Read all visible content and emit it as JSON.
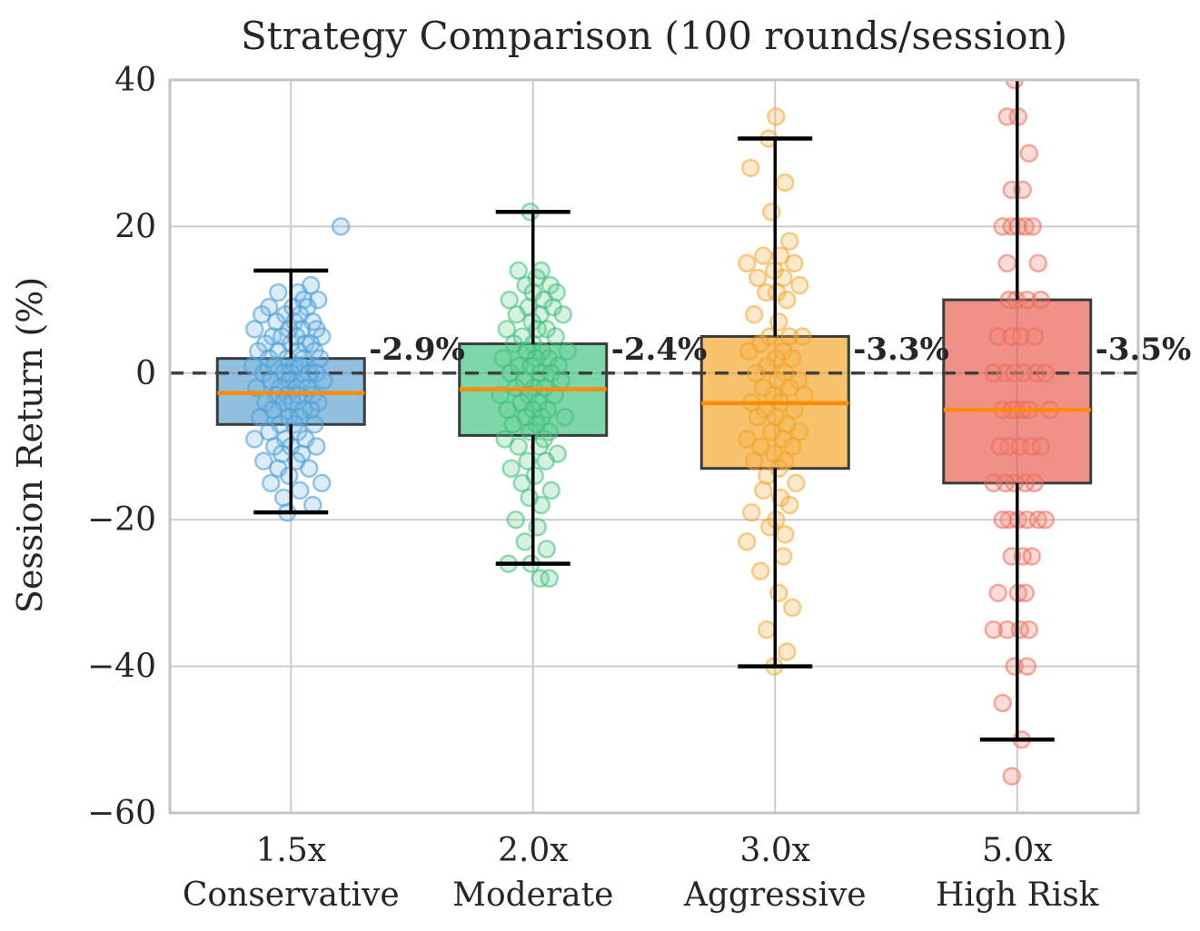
{
  "chart_data": {
    "type": "boxplot",
    "title": "Strategy Comparison (100 rounds/session)",
    "ylabel": "Session Return (%)",
    "ylim": [
      -60,
      40
    ],
    "yticks": [
      40,
      20,
      0,
      -20,
      -40,
      -60
    ],
    "ytick_labels": [
      "40",
      "20",
      "0",
      "−20",
      "−40",
      "−60"
    ],
    "zero_reference_line": 0,
    "grid": true,
    "legend_position": "none",
    "style": {
      "box_edge": "#3b3b3b",
      "median_color": "#ff8a05",
      "whisker_color": "#000000",
      "grid_color": "#cccccc",
      "spine_color": "#c4c4c4",
      "dashed_line_color": "#3f3f3f",
      "text_color": "#262626",
      "background": "#ffffff"
    },
    "groups": [
      {
        "tick_line1": "1.5x",
        "tick_line2": "Conservative",
        "annotation": "-2.9%",
        "annotation_color": "#3d8fd1",
        "box_fill": "rgba(52,138,199,0.55)",
        "point_stroke": "rgba(80,158,215,0.6)",
        "point_fill": "rgba(120,185,230,0.28)",
        "box": {
          "whisker_low": -19,
          "q1": -7,
          "median": -2.7,
          "q3": 2,
          "whisker_high": 14,
          "cap_high": true,
          "cap_low": true
        },
        "points": [
          [
            55,
            20
          ],
          [
            22,
            12
          ],
          [
            8,
            11
          ],
          [
            -14,
            11
          ],
          [
            14,
            10
          ],
          [
            30,
            10
          ],
          [
            -24,
            9
          ],
          [
            2,
            9
          ],
          [
            18,
            9
          ],
          [
            -6,
            8
          ],
          [
            10,
            8
          ],
          [
            -32,
            8
          ],
          [
            24,
            7
          ],
          [
            -16,
            7
          ],
          [
            4,
            7
          ],
          [
            -40,
            6
          ],
          [
            12,
            6
          ],
          [
            -2,
            6
          ],
          [
            28,
            6
          ],
          [
            -20,
            5
          ],
          [
            6,
            5
          ],
          [
            34,
            5
          ],
          [
            -10,
            5
          ],
          [
            16,
            4
          ],
          [
            -28,
            4
          ],
          [
            0,
            4
          ],
          [
            22,
            4
          ],
          [
            -36,
            3
          ],
          [
            8,
            3
          ],
          [
            -14,
            3
          ],
          [
            26,
            3
          ],
          [
            -4,
            2
          ],
          [
            14,
            2
          ],
          [
            -24,
            2
          ],
          [
            32,
            2
          ],
          [
            4,
            1
          ],
          [
            -18,
            1
          ],
          [
            10,
            1
          ],
          [
            -42,
            1
          ],
          [
            20,
            0
          ],
          [
            -8,
            0
          ],
          [
            0,
            0
          ],
          [
            -30,
            0
          ],
          [
            28,
            0
          ],
          [
            -2,
            -1
          ],
          [
            12,
            -1
          ],
          [
            -22,
            -1
          ],
          [
            36,
            -1
          ],
          [
            6,
            -2
          ],
          [
            -12,
            -2
          ],
          [
            18,
            -2
          ],
          [
            -38,
            -2
          ],
          [
            -4,
            -3
          ],
          [
            24,
            -3
          ],
          [
            -16,
            -3
          ],
          [
            8,
            -3
          ],
          [
            30,
            -4
          ],
          [
            -8,
            -4
          ],
          [
            2,
            -4
          ],
          [
            -28,
            -4
          ],
          [
            14,
            -5
          ],
          [
            -20,
            -5
          ],
          [
            22,
            -5
          ],
          [
            -2,
            -6
          ],
          [
            10,
            -6
          ],
          [
            -34,
            -6
          ],
          [
            4,
            -7
          ],
          [
            -12,
            -7
          ],
          [
            26,
            -7
          ],
          [
            -24,
            -8
          ],
          [
            8,
            -8
          ],
          [
            -6,
            -9
          ],
          [
            16,
            -9
          ],
          [
            -40,
            -9
          ],
          [
            0,
            -10
          ],
          [
            -18,
            -10
          ],
          [
            28,
            -10
          ],
          [
            -10,
            -11
          ],
          [
            12,
            -11
          ],
          [
            -30,
            -12
          ],
          [
            6,
            -12
          ],
          [
            -14,
            -13
          ],
          [
            20,
            -13
          ],
          [
            -2,
            -14
          ],
          [
            34,
            -15
          ],
          [
            -22,
            -15
          ],
          [
            10,
            -16
          ],
          [
            -8,
            -17
          ],
          [
            24,
            -18
          ],
          [
            -4,
            -19
          ]
        ]
      },
      {
        "tick_line1": "2.0x",
        "tick_line2": "Moderate",
        "annotation": "-2.4%",
        "annotation_color": "#2eb370",
        "box_fill": "rgba(46,190,115,0.62)",
        "point_stroke": "rgba(60,190,120,0.55)",
        "point_fill": "rgba(100,205,150,0.28)",
        "box": {
          "whisker_low": -26,
          "q1": -8.5,
          "median": -2.2,
          "q3": 4,
          "whisker_high": 22,
          "cap_high": true,
          "cap_low": true
        },
        "points": [
          [
            -3,
            22
          ],
          [
            9,
            14
          ],
          [
            -16,
            14
          ],
          [
            4,
            13
          ],
          [
            19,
            12
          ],
          [
            -8,
            12
          ],
          [
            26,
            11
          ],
          [
            0,
            11
          ],
          [
            -26,
            10
          ],
          [
            12,
            10
          ],
          [
            -5,
            9
          ],
          [
            22,
            9
          ],
          [
            8,
            8
          ],
          [
            -18,
            8
          ],
          [
            33,
            8
          ],
          [
            -1,
            7
          ],
          [
            15,
            6
          ],
          [
            -29,
            6
          ],
          [
            5,
            6
          ],
          [
            -12,
            5
          ],
          [
            25,
            5
          ],
          [
            0,
            4
          ],
          [
            -21,
            4
          ],
          [
            10,
            3
          ],
          [
            38,
            3
          ],
          [
            -7,
            3
          ],
          [
            17,
            2
          ],
          [
            -33,
            2
          ],
          [
            3,
            2
          ],
          [
            -15,
            1
          ],
          [
            28,
            1
          ],
          [
            -2,
            1
          ],
          [
            8,
            0
          ],
          [
            -25,
            0
          ],
          [
            20,
            0
          ],
          [
            -10,
            -1
          ],
          [
            31,
            -1
          ],
          [
            1,
            -2
          ],
          [
            -19,
            -2
          ],
          [
            13,
            -2
          ],
          [
            -5,
            -3
          ],
          [
            24,
            -3
          ],
          [
            -36,
            -3
          ],
          [
            6,
            -4
          ],
          [
            -13,
            -4
          ],
          [
            16,
            -5
          ],
          [
            -28,
            -5
          ],
          [
            0,
            -5
          ],
          [
            10,
            -6
          ],
          [
            -8,
            -6
          ],
          [
            35,
            -6
          ],
          [
            -22,
            -7
          ],
          [
            4,
            -7
          ],
          [
            18,
            -8
          ],
          [
            -3,
            -8
          ],
          [
            -31,
            -9
          ],
          [
            12,
            -9
          ],
          [
            -16,
            -10
          ],
          [
            7,
            -10
          ],
          [
            27,
            -11
          ],
          [
            -6,
            -12
          ],
          [
            14,
            -12
          ],
          [
            -24,
            -13
          ],
          [
            2,
            -14
          ],
          [
            -12,
            -15
          ],
          [
            20,
            -16
          ],
          [
            -4,
            -17
          ],
          [
            9,
            -18
          ],
          [
            -19,
            -20
          ],
          [
            5,
            -21
          ],
          [
            -9,
            -23
          ],
          [
            15,
            -24
          ],
          [
            -2,
            -26
          ],
          [
            -27,
            -26
          ],
          [
            8,
            -28
          ],
          [
            18,
            -28
          ]
        ]
      },
      {
        "tick_line1": "3.0x",
        "tick_line2": "Aggressive",
        "annotation": "-3.3%",
        "annotation_color": "#f39c12",
        "box_fill": "rgba(243,156,18,0.62)",
        "point_stroke": "rgba(240,160,30,0.5)",
        "point_fill": "rgba(245,180,80,0.3)",
        "box": {
          "whisker_low": -40,
          "q1": -13,
          "median": -4.1,
          "q3": 5,
          "whisker_high": 32,
          "cap_high": true,
          "cap_low": true
        },
        "points": [
          [
            1,
            35
          ],
          [
            -7,
            32
          ],
          [
            -27,
            28
          ],
          [
            11,
            26
          ],
          [
            -4,
            22
          ],
          [
            16,
            18
          ],
          [
            -13,
            16
          ],
          [
            6,
            16
          ],
          [
            -31,
            15
          ],
          [
            21,
            15
          ],
          [
            -1,
            14
          ],
          [
            9,
            13
          ],
          [
            -19,
            13
          ],
          [
            27,
            12
          ],
          [
            2,
            11
          ],
          [
            -10,
            11
          ],
          [
            13,
            10
          ],
          [
            -23,
            8
          ],
          [
            4,
            7
          ],
          [
            16,
            5
          ],
          [
            -6,
            5
          ],
          [
            30,
            5
          ],
          [
            -16,
            4
          ],
          [
            9,
            3
          ],
          [
            -29,
            3
          ],
          [
            1,
            2
          ],
          [
            19,
            2
          ],
          [
            -9,
            1
          ],
          [
            11,
            0
          ],
          [
            -21,
            0
          ],
          [
            26,
            -1
          ],
          [
            3,
            -1
          ],
          [
            -13,
            -2
          ],
          [
            16,
            -2
          ],
          [
            -2,
            -3
          ],
          [
            32,
            -3
          ],
          [
            -26,
            -4
          ],
          [
            6,
            -4
          ],
          [
            -11,
            -5
          ],
          [
            21,
            -5
          ],
          [
            1,
            -6
          ],
          [
            -19,
            -6
          ],
          [
            13,
            -7
          ],
          [
            -4,
            -8
          ],
          [
            27,
            -8
          ],
          [
            -31,
            -9
          ],
          [
            9,
            -9
          ],
          [
            -16,
            -10
          ],
          [
            19,
            -10
          ],
          [
            -1,
            -11
          ],
          [
            11,
            -12
          ],
          [
            -23,
            -12
          ],
          [
            4,
            -13
          ],
          [
            -9,
            -14
          ],
          [
            23,
            -15
          ],
          [
            -13,
            -16
          ],
          [
            6,
            -17
          ],
          [
            16,
            -18
          ],
          [
            -26,
            -19
          ],
          [
            1,
            -20
          ],
          [
            -6,
            -21
          ],
          [
            11,
            -22
          ],
          [
            -31,
            -23
          ],
          [
            9,
            -25
          ],
          [
            -16,
            -27
          ],
          [
            4,
            -30
          ],
          [
            19,
            -32
          ],
          [
            -9,
            -35
          ],
          [
            13,
            -38
          ],
          [
            -1,
            -40
          ]
        ]
      },
      {
        "tick_line1": "5.0x",
        "tick_line2": "High Risk",
        "annotation": "-3.5%",
        "annotation_color": "#e64a3e",
        "box_fill": "rgba(229,72,57,0.6)",
        "point_stroke": "rgba(235,105,90,0.55)",
        "point_fill": "rgba(240,135,120,0.3)",
        "box": {
          "whisker_low": -50,
          "q1": -15,
          "median": -5,
          "q3": 10,
          "whisker_high": 40,
          "cap_high": false,
          "cap_low": true
        },
        "points": [
          [
            -3,
            40
          ],
          [
            -11,
            35
          ],
          [
            1,
            35
          ],
          [
            13,
            30
          ],
          [
            -6,
            25
          ],
          [
            6,
            25
          ],
          [
            -16,
            20
          ],
          [
            -6,
            20
          ],
          [
            1,
            20
          ],
          [
            9,
            20
          ],
          [
            17,
            20
          ],
          [
            -11,
            15
          ],
          [
            23,
            15
          ],
          [
            -1,
            10
          ],
          [
            -9,
            10
          ],
          [
            11,
            10
          ],
          [
            26,
            10
          ],
          [
            -21,
            5
          ],
          [
            -6,
            5
          ],
          [
            4,
            5
          ],
          [
            19,
            5
          ],
          [
            -13,
            0
          ],
          [
            -3,
            0
          ],
          [
            7,
            0
          ],
          [
            21,
            0
          ],
          [
            -26,
            0
          ],
          [
            31,
            0
          ],
          [
            -16,
            -5
          ],
          [
            -1,
            -5
          ],
          [
            6,
            -5
          ],
          [
            -6,
            -5
          ],
          [
            13,
            -5
          ],
          [
            36,
            -5
          ],
          [
            -9,
            -10
          ],
          [
            3,
            -10
          ],
          [
            16,
            -10
          ],
          [
            -19,
            -10
          ],
          [
            26,
            -10
          ],
          [
            -3,
            -15
          ],
          [
            9,
            -15
          ],
          [
            -13,
            -15
          ],
          [
            -26,
            -15
          ],
          [
            19,
            -15
          ],
          [
            1,
            -20
          ],
          [
            -9,
            -20
          ],
          [
            11,
            -20
          ],
          [
            23,
            -20
          ],
          [
            -16,
            -20
          ],
          [
            31,
            -20
          ],
          [
            6,
            -25
          ],
          [
            -6,
            -25
          ],
          [
            16,
            -25
          ],
          [
            -21,
            -30
          ],
          [
            1,
            -30
          ],
          [
            9,
            -30
          ],
          [
            -11,
            -35
          ],
          [
            3,
            -35
          ],
          [
            13,
            -35
          ],
          [
            -26,
            -35
          ],
          [
            -3,
            -40
          ],
          [
            11,
            -40
          ],
          [
            -16,
            -45
          ],
          [
            5,
            -50
          ],
          [
            -6,
            -55
          ]
        ]
      }
    ]
  }
}
